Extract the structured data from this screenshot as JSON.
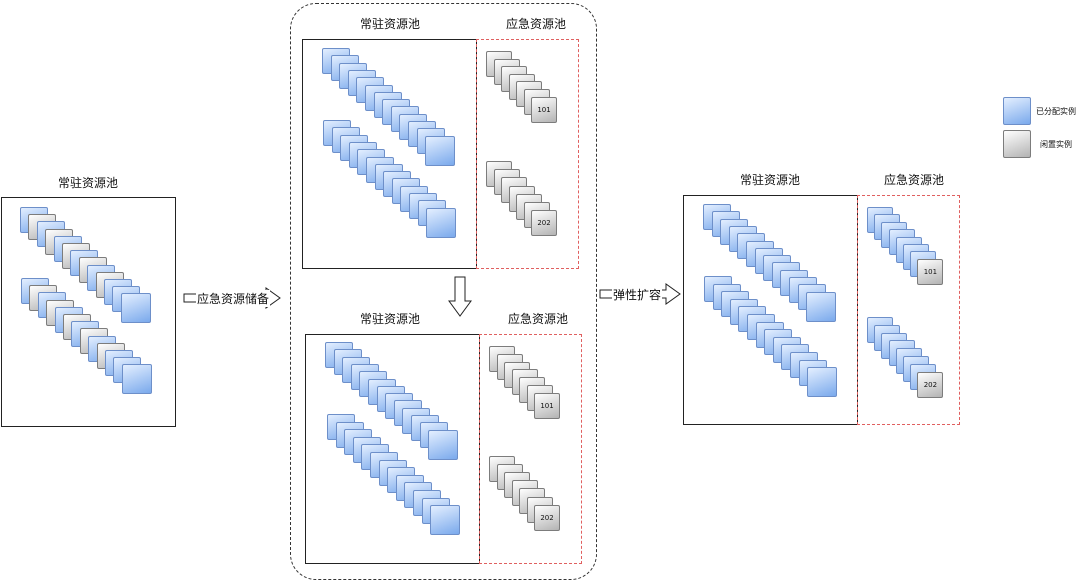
{
  "left_diagram": {
    "title": "常驻资源池"
  },
  "arrow1": {
    "label": "应急资源储备"
  },
  "middle_top": {
    "resident_title": "常驻资源池",
    "emergency_title": "应急资源池",
    "badge_a": "101",
    "badge_b": "202"
  },
  "middle_bottom": {
    "resident_title": "常驻资源池",
    "emergency_title": "应急资源池",
    "badge_a": "101",
    "badge_b": "202"
  },
  "arrow2": {
    "label": "弹性扩容"
  },
  "right_diagram": {
    "resident_title": "常驻资源池",
    "emergency_title": "应急资源池",
    "badge_a": "101",
    "badge_b": "202"
  },
  "legend": {
    "items": [
      {
        "label": "已分配实例",
        "color": "blue"
      },
      {
        "label": "闲置实例",
        "color": "gray"
      }
    ]
  }
}
